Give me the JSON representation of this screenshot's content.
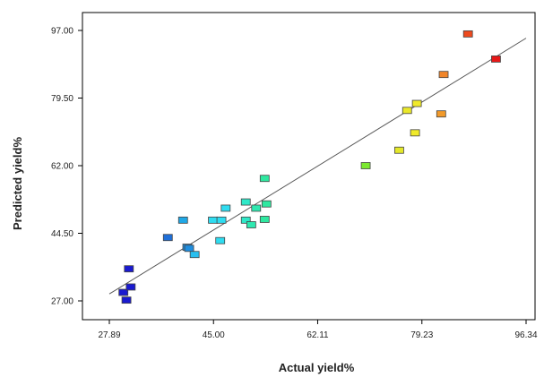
{
  "chart_data": {
    "type": "scatter",
    "title": "",
    "xlabel": "Actual yield%",
    "ylabel": "Predicted yield%",
    "xlim": [
      27.89,
      96.34
    ],
    "ylim": [
      27.0,
      97.0
    ],
    "x_ticks": [
      "27.89",
      "45.00",
      "62.11",
      "79.23",
      "96.34"
    ],
    "y_ticks": [
      "97.00",
      "79.50",
      "62.00",
      "44.50",
      "27.00"
    ],
    "grid": false,
    "legend": "none",
    "marker": "square",
    "color_scale": "blue-cyan-green-yellow-orange-red (by actual yield)",
    "fit_line": {
      "x": [
        27.89,
        96.34
      ],
      "y": [
        28.8,
        95.0
      ]
    },
    "points": [
      {
        "x": 30.2,
        "y": 29.2,
        "color": "#1a1ad0"
      },
      {
        "x": 30.7,
        "y": 27.2,
        "color": "#1a1ad0"
      },
      {
        "x": 31.4,
        "y": 30.6,
        "color": "#1a1ad0"
      },
      {
        "x": 31.1,
        "y": 35.3,
        "color": "#1a1ad0"
      },
      {
        "x": 37.5,
        "y": 43.4,
        "color": "#1f6fd8"
      },
      {
        "x": 40.7,
        "y": 40.9,
        "color": "#1f8ee0"
      },
      {
        "x": 41.0,
        "y": 40.6,
        "color": "#1f8ee0"
      },
      {
        "x": 40.0,
        "y": 47.9,
        "color": "#20a8e6"
      },
      {
        "x": 41.9,
        "y": 39.0,
        "color": "#28bff0"
      },
      {
        "x": 44.9,
        "y": 47.9,
        "color": "#2fdcf0"
      },
      {
        "x": 46.1,
        "y": 42.6,
        "color": "#2fdcf0"
      },
      {
        "x": 46.3,
        "y": 47.9,
        "color": "#2fdcf0"
      },
      {
        "x": 47.0,
        "y": 51.0,
        "color": "#2fdcf0"
      },
      {
        "x": 50.3,
        "y": 47.9,
        "color": "#2fe8c8"
      },
      {
        "x": 50.3,
        "y": 52.6,
        "color": "#2fe8c8"
      },
      {
        "x": 51.2,
        "y": 46.7,
        "color": "#2fe8b0"
      },
      {
        "x": 52.0,
        "y": 51.0,
        "color": "#2fe8b0"
      },
      {
        "x": 53.4,
        "y": 48.1,
        "color": "#2fe8a0"
      },
      {
        "x": 53.4,
        "y": 58.7,
        "color": "#2fe8a0"
      },
      {
        "x": 53.7,
        "y": 52.1,
        "color": "#2fe8a0"
      },
      {
        "x": 70.0,
        "y": 62.0,
        "color": "#7be82f"
      },
      {
        "x": 75.5,
        "y": 66.0,
        "color": "#e4e82a"
      },
      {
        "x": 76.8,
        "y": 76.3,
        "color": "#eae82a"
      },
      {
        "x": 78.1,
        "y": 70.5,
        "color": "#f0ea2a"
      },
      {
        "x": 78.4,
        "y": 78.1,
        "color": "#f0ea2a"
      },
      {
        "x": 82.4,
        "y": 75.4,
        "color": "#f29a2a"
      },
      {
        "x": 82.8,
        "y": 85.6,
        "color": "#f0852a"
      },
      {
        "x": 86.8,
        "y": 96.1,
        "color": "#ee4a1e"
      },
      {
        "x": 91.4,
        "y": 89.6,
        "color": "#e61818"
      }
    ]
  }
}
